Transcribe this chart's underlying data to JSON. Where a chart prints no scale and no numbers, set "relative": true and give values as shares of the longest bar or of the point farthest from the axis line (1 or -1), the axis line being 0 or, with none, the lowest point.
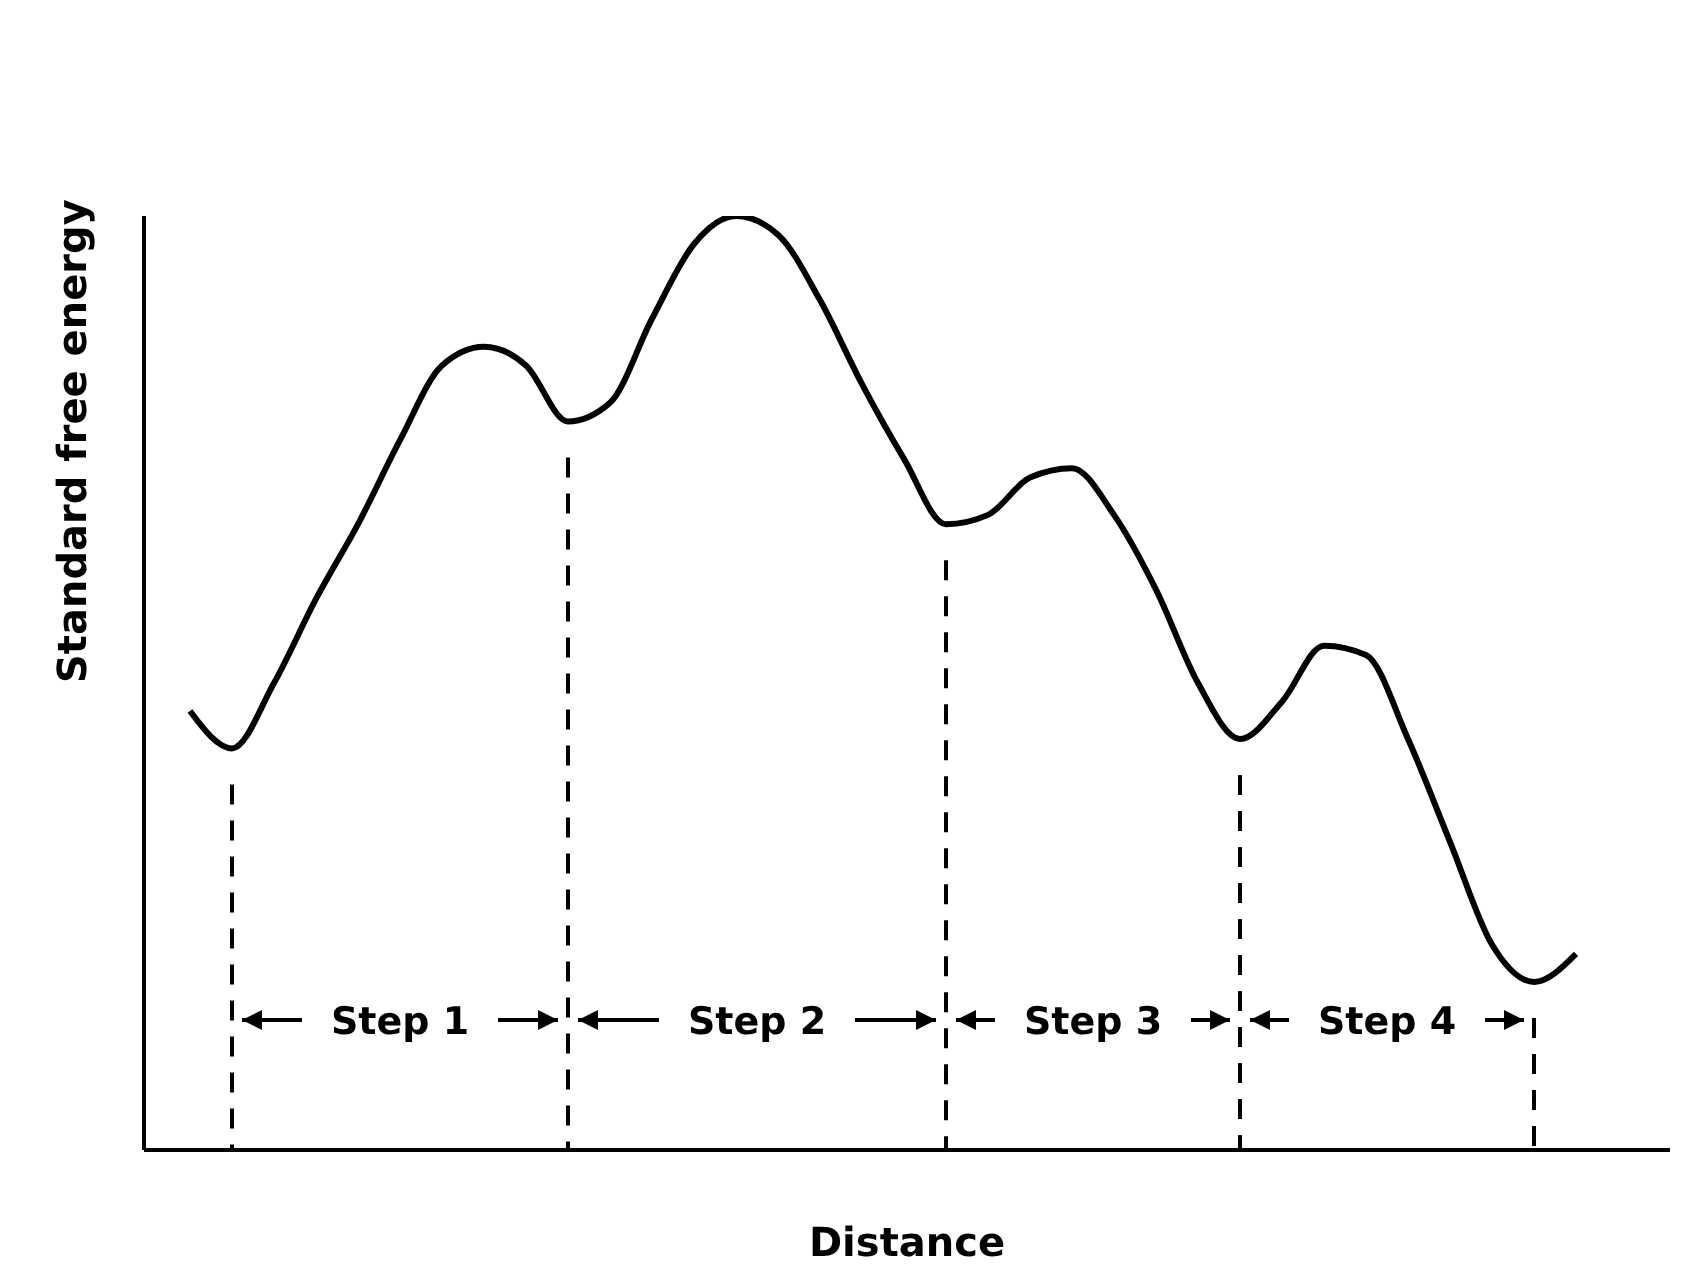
{
  "chart_data": {
    "type": "line",
    "xlabel": "Distance",
    "ylabel": "Standard free energy",
    "relative": true,
    "marker": "none",
    "line_style": "solid",
    "color": "#000000",
    "categories": [
      null,
      null,
      null,
      null,
      null,
      null,
      null,
      null,
      null,
      null,
      null,
      null,
      null,
      null,
      null,
      null,
      null,
      null,
      null,
      null,
      null,
      null,
      null,
      null,
      null,
      null,
      null,
      null,
      null,
      null,
      null,
      null,
      null,
      null
    ],
    "values": [
      0.47,
      0.43,
      0.5,
      0.59,
      0.67,
      0.76,
      0.84,
      0.86,
      0.84,
      0.78,
      0.8,
      0.89,
      0.97,
      1.0,
      0.98,
      0.91,
      0.82,
      0.74,
      0.67,
      0.68,
      0.72,
      0.73,
      0.68,
      0.6,
      0.5,
      0.44,
      0.48,
      0.54,
      0.53,
      0.44,
      0.33,
      0.22,
      0.18,
      0.21
    ],
    "annotations": [
      "Step 1",
      "Step 2",
      "Step 3",
      "Step 4"
    ]
  }
}
